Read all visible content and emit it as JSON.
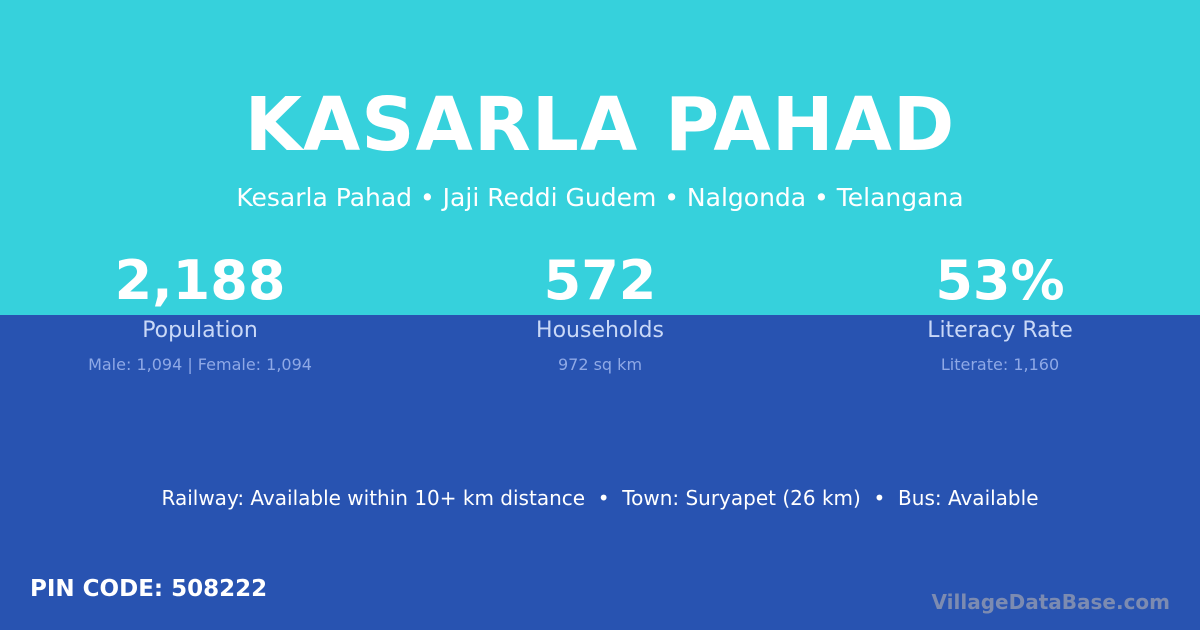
{
  "header": {
    "title": "KASARLA PAHAD",
    "subtitle": "Kesarla Pahad • Jaji Reddi Gudem • Nalgonda • Telangana"
  },
  "stats": [
    {
      "value": "2,188",
      "label": "Population",
      "detail": "Male: 1,094 | Female: 1,094"
    },
    {
      "value": "572",
      "label": "Households",
      "detail": "972 sq km"
    },
    {
      "value": "53%",
      "label": "Literacy Rate",
      "detail": "Literate: 1,160"
    }
  ],
  "transport": "Railway: Available within 10+ km distance  •  Town: Suryapet (26 km)  •  Bus: Available",
  "pin_code": "PIN CODE: 508222",
  "brand": "VillageDataBase.com",
  "colors": {
    "top": "#36d1dc",
    "bottom": "#2853b1"
  }
}
